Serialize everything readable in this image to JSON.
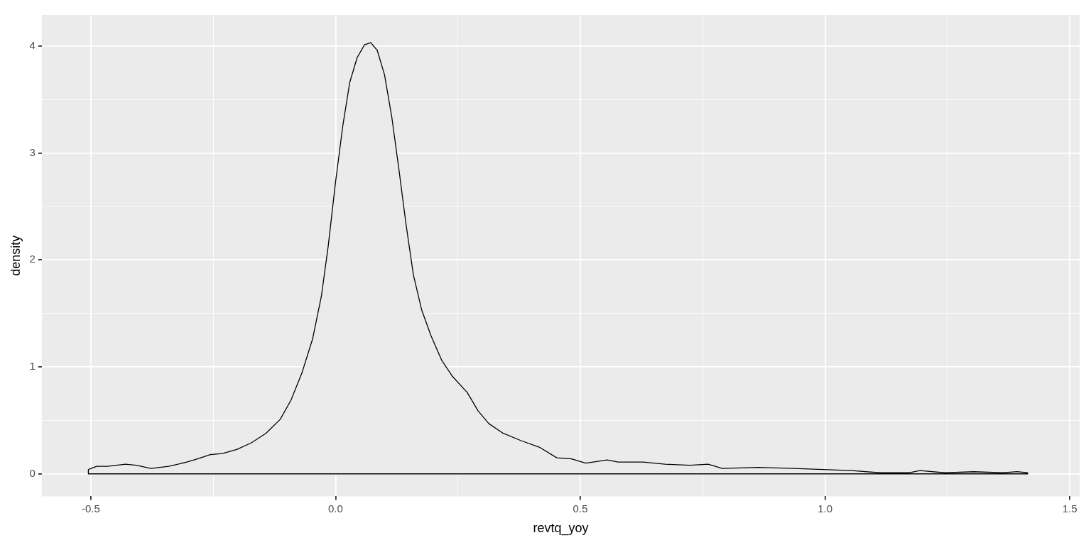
{
  "chart_data": {
    "type": "area",
    "xlabel": "revtq_yoy",
    "ylabel": "density",
    "color": "#000000",
    "grid": true,
    "xlim": [
      -0.6,
      1.52
    ],
    "ylim": [
      -0.21,
      4.29
    ],
    "xticks": [
      -0.5,
      {
        "value": -0.25,
        "label": null
      },
      {
        "value": 0,
        "label": "0.0"
      },
      {
        "value": 0.25,
        "label": null
      },
      0.5,
      {
        "value": 0.75,
        "label": null
      },
      {
        "value": 1,
        "label": "1.0"
      },
      {
        "value": 1.25,
        "label": null
      },
      1.5
    ],
    "yticks": [
      0,
      {
        "value": 0.5,
        "label": null
      },
      1,
      {
        "value": 1.5,
        "label": null
      },
      2,
      {
        "value": 2.5,
        "label": null
      },
      3,
      {
        "value": 3.5,
        "label": null
      },
      4
    ],
    "x": [
      -0.505,
      -0.488,
      -0.466,
      -0.429,
      -0.407,
      -0.377,
      -0.341,
      -0.304,
      -0.282,
      -0.256,
      -0.231,
      -0.201,
      -0.172,
      -0.142,
      -0.113,
      -0.091,
      -0.069,
      -0.047,
      -0.029,
      -0.015,
      0.0,
      0.015,
      0.029,
      0.044,
      0.059,
      0.072,
      0.085,
      0.1,
      0.115,
      0.129,
      0.144,
      0.159,
      0.176,
      0.195,
      0.217,
      0.239,
      0.269,
      0.291,
      0.313,
      0.342,
      0.379,
      0.416,
      0.452,
      0.482,
      0.511,
      0.526,
      0.555,
      0.577,
      0.628,
      0.673,
      0.724,
      0.761,
      0.79,
      0.863,
      0.937,
      0.996,
      1.054,
      1.113,
      1.172,
      1.194,
      1.245,
      1.304,
      1.363,
      1.392,
      1.414
    ],
    "values": [
      0.04,
      0.07,
      0.07,
      0.09,
      0.08,
      0.05,
      0.07,
      0.11,
      0.14,
      0.18,
      0.19,
      0.23,
      0.29,
      0.38,
      0.51,
      0.69,
      0.94,
      1.26,
      1.66,
      2.13,
      2.73,
      3.26,
      3.66,
      3.89,
      4.01,
      4.03,
      3.96,
      3.73,
      3.33,
      2.86,
      2.33,
      1.86,
      1.53,
      1.29,
      1.06,
      0.91,
      0.76,
      0.59,
      0.47,
      0.38,
      0.31,
      0.25,
      0.15,
      0.14,
      0.1,
      0.11,
      0.13,
      0.11,
      0.11,
      0.09,
      0.08,
      0.09,
      0.05,
      0.06,
      0.05,
      0.04,
      0.03,
      0.01,
      0.01,
      0.03,
      0.01,
      0.02,
      0.01,
      0.02,
      0.01
    ]
  }
}
